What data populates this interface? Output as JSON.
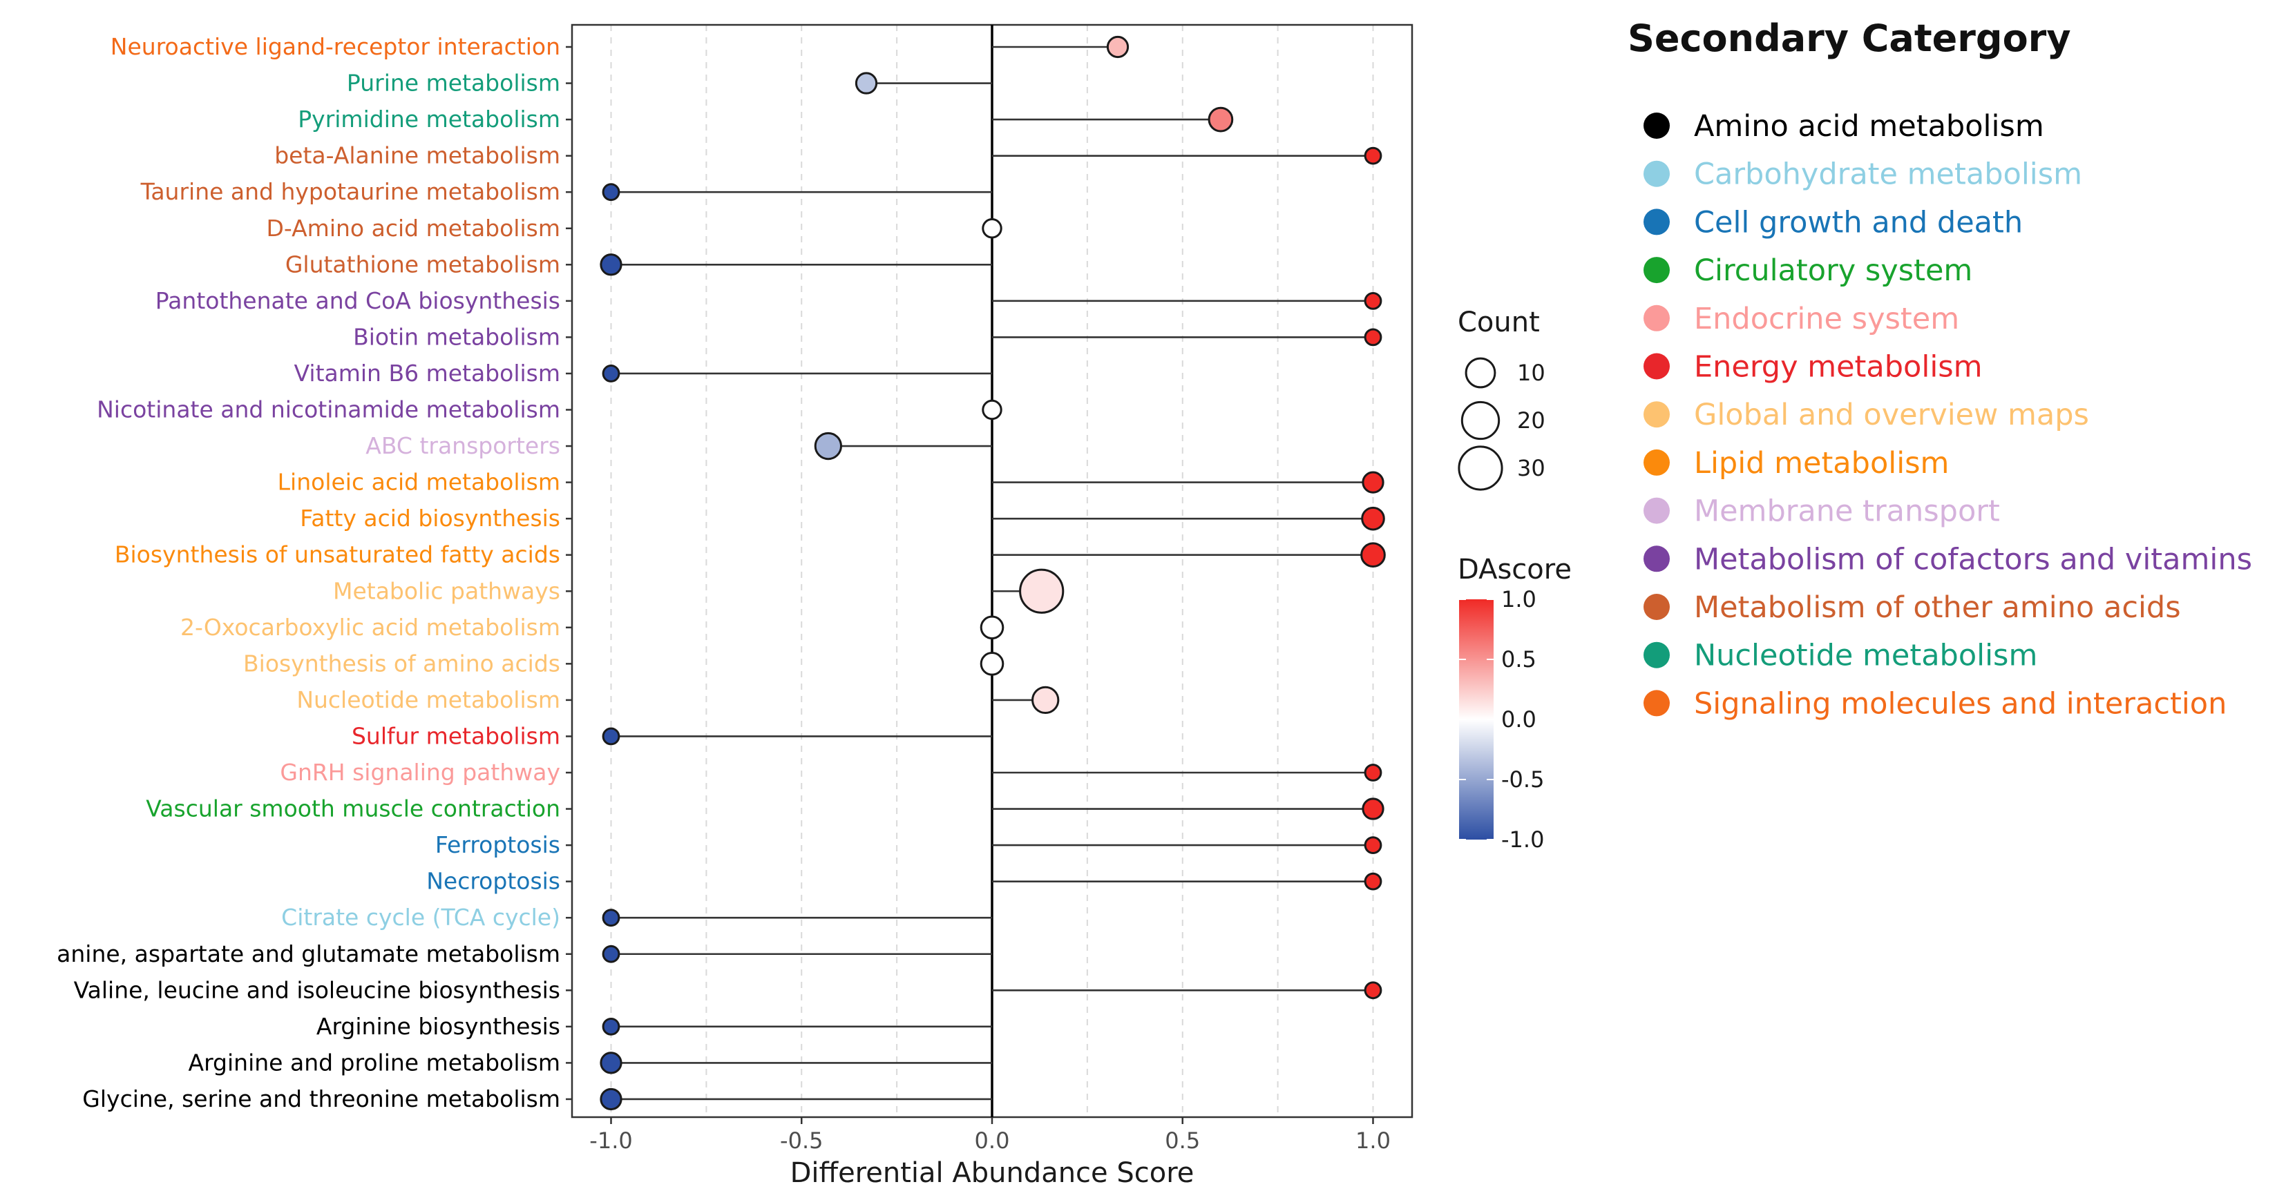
{
  "chart_data": {
    "type": "lollipop",
    "xlabel": "Differential Abundance Score",
    "xlim": [
      -1.1,
      1.1
    ],
    "xticks": [
      -1.0,
      -0.5,
      0.0,
      0.5,
      1.0
    ],
    "xtick_labels": [
      "-1.0",
      "-0.5",
      "0.0",
      "0.5",
      "1.0"
    ],
    "grid": true,
    "pathways": [
      {
        "name": "Neuroactive ligand-receptor interaction",
        "category": "Signaling molecules and interaction",
        "score": 0.33,
        "count": 3
      },
      {
        "name": "Purine metabolism",
        "category": "Nucleotide metabolism",
        "score": -0.33,
        "count": 3
      },
      {
        "name": "Pyrimidine metabolism",
        "category": "Nucleotide metabolism",
        "score": 0.6,
        "count": 5
      },
      {
        "name": "beta-Alanine metabolism",
        "category": "Metabolism of other amino acids",
        "score": 1.0,
        "count": 1
      },
      {
        "name": "Taurine and hypotaurine metabolism",
        "category": "Metabolism of other amino acids",
        "score": -1.0,
        "count": 1
      },
      {
        "name": "D-Amino acid metabolism",
        "category": "Metabolism of other amino acids",
        "score": 0.0,
        "count": 2
      },
      {
        "name": "Glutathione metabolism",
        "category": "Metabolism of other amino acids",
        "score": -1.0,
        "count": 3
      },
      {
        "name": "Pantothenate and CoA biosynthesis",
        "category": "Metabolism of cofactors and vitamins",
        "score": 1.0,
        "count": 1
      },
      {
        "name": "Biotin metabolism",
        "category": "Metabolism of cofactors and vitamins",
        "score": 1.0,
        "count": 1
      },
      {
        "name": "Vitamin B6 metabolism",
        "category": "Metabolism of cofactors and vitamins",
        "score": -1.0,
        "count": 1
      },
      {
        "name": "Nicotinate and nicotinamide metabolism",
        "category": "Metabolism of cofactors and vitamins",
        "score": 0.0,
        "count": 2
      },
      {
        "name": "ABC transporters",
        "category": "Membrane transport",
        "score": -0.43,
        "count": 7
      },
      {
        "name": "Linoleic acid metabolism",
        "category": "Lipid metabolism",
        "score": 1.0,
        "count": 3
      },
      {
        "name": "Fatty acid biosynthesis",
        "category": "Lipid metabolism",
        "score": 1.0,
        "count": 4
      },
      {
        "name": "Biosynthesis of unsaturated fatty acids",
        "category": "Lipid metabolism",
        "score": 1.0,
        "count": 5
      },
      {
        "name": "Metabolic pathways",
        "category": "Global and overview maps",
        "score": 0.13,
        "count": 30
      },
      {
        "name": "2-Oxocarboxylic acid metabolism",
        "category": "Global and overview maps",
        "score": 0.0,
        "count": 4
      },
      {
        "name": "Biosynthesis of amino acids",
        "category": "Global and overview maps",
        "score": 0.0,
        "count": 4
      },
      {
        "name": "Nucleotide metabolism",
        "category": "Global and overview maps",
        "score": 0.14,
        "count": 7
      },
      {
        "name": "Sulfur metabolism",
        "category": "Energy metabolism",
        "score": -1.0,
        "count": 1
      },
      {
        "name": "GnRH signaling pathway",
        "category": "Endocrine system",
        "score": 1.0,
        "count": 1
      },
      {
        "name": "Vascular smooth muscle contraction",
        "category": "Circulatory system",
        "score": 1.0,
        "count": 3
      },
      {
        "name": "Ferroptosis",
        "category": "Cell growth and death",
        "score": 1.0,
        "count": 1
      },
      {
        "name": "Necroptosis",
        "category": "Cell growth and death",
        "score": 1.0,
        "count": 1
      },
      {
        "name": "Citrate cycle (TCA cycle)",
        "category": "Carbohydrate metabolism",
        "score": -1.0,
        "count": 1
      },
      {
        "name": "anine, aspartate and glutamate metabolism",
        "category": "Amino acid metabolism",
        "score": -1.0,
        "count": 1
      },
      {
        "name": "Valine, leucine and isoleucine biosynthesis",
        "category": "Amino acid metabolism",
        "score": 1.0,
        "count": 1
      },
      {
        "name": "Arginine biosynthesis",
        "category": "Amino acid metabolism",
        "score": -1.0,
        "count": 1
      },
      {
        "name": "Arginine and proline metabolism",
        "category": "Amino acid metabolism",
        "score": -1.0,
        "count": 3
      },
      {
        "name": "Glycine, serine and threonine metabolism",
        "category": "Amino acid metabolism",
        "score": -1.0,
        "count": 3
      }
    ],
    "legend_count": {
      "title": "Count",
      "values": [
        10,
        20,
        30
      ],
      "labels": [
        "10",
        "20",
        "30"
      ]
    },
    "legend_colorbar": {
      "title": "DAscore",
      "range": [
        -1.0,
        1.0
      ],
      "ticks": [
        1.0,
        0.5,
        0.0,
        -0.5,
        -1.0
      ],
      "labels": [
        "1.0",
        "0.5",
        "0.0",
        "-0.5",
        "-1.0"
      ],
      "colors": {
        "low": "#2c4ea3",
        "mid": "#ffffff",
        "high": "#f02a26"
      }
    },
    "legend_category": {
      "title": "Secondary Catergory",
      "items": [
        {
          "name": "Amino acid metabolism",
          "color": "#000000"
        },
        {
          "name": "Carbohydrate metabolism",
          "color": "#8ecfe3"
        },
        {
          "name": "Cell growth and death",
          "color": "#1874b6"
        },
        {
          "name": "Circulatory system",
          "color": "#18a32d"
        },
        {
          "name": "Endocrine system",
          "color": "#fb9a99"
        },
        {
          "name": "Energy metabolism",
          "color": "#e8262b"
        },
        {
          "name": "Global and overview maps",
          "color": "#fdc270"
        },
        {
          "name": "Lipid metabolism",
          "color": "#fb8a0c"
        },
        {
          "name": "Membrane transport",
          "color": "#d5b1dc"
        },
        {
          "name": "Metabolism of cofactors and vitamins",
          "color": "#7a42a0"
        },
        {
          "name": "Metabolism of other amino acids",
          "color": "#cd5f2e"
        },
        {
          "name": "Nucleotide metabolism",
          "color": "#139d7a"
        },
        {
          "name": "Signaling molecules and interaction",
          "color": "#f36a18"
        }
      ]
    }
  }
}
